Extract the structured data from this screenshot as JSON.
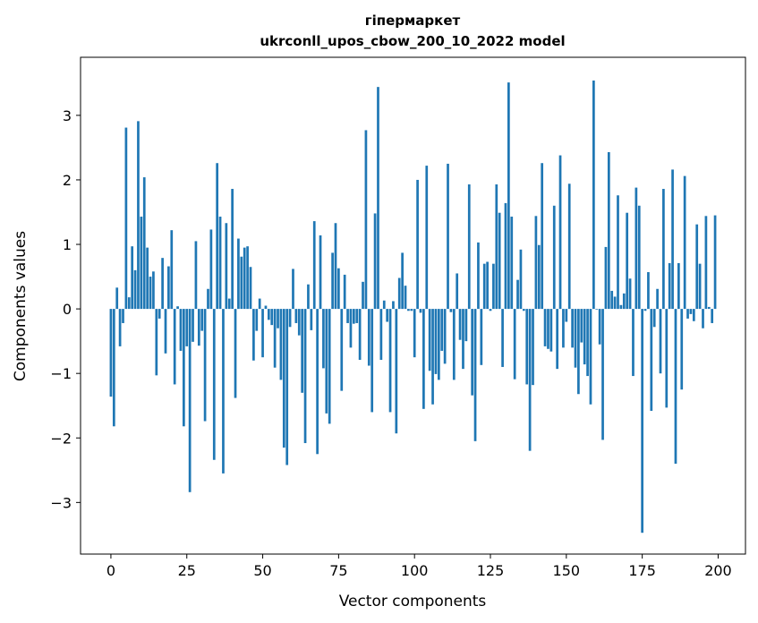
{
  "chart_data": {
    "type": "bar",
    "title": "гіпермаркет",
    "subtitle": "ukrconll_upos_cbow_200_10_2022 model",
    "xlabel": "Vector components",
    "ylabel": "Components values",
    "xlim": [
      -10,
      209
    ],
    "ylim": [
      -3.8,
      3.9
    ],
    "x_ticks": [
      0,
      25,
      50,
      75,
      100,
      125,
      150,
      175,
      200
    ],
    "y_ticks": [
      -3,
      -2,
      -1,
      0,
      1,
      2,
      3
    ],
    "x_tick_labels": [
      "0",
      "25",
      "50",
      "75",
      "100",
      "125",
      "150",
      "175",
      "200"
    ],
    "y_tick_labels": [
      "−3",
      "−2",
      "−1",
      "0",
      "1",
      "2",
      "3"
    ],
    "grid": false,
    "bar_color": "#1f77b4",
    "x": [
      0,
      1,
      2,
      3,
      4,
      5,
      6,
      7,
      8,
      9,
      10,
      11,
      12,
      13,
      14,
      15,
      16,
      17,
      18,
      19,
      20,
      21,
      22,
      23,
      24,
      25,
      26,
      27,
      28,
      29,
      30,
      31,
      32,
      33,
      34,
      35,
      36,
      37,
      38,
      39,
      40,
      41,
      42,
      43,
      44,
      45,
      46,
      47,
      48,
      49,
      50,
      51,
      52,
      53,
      54,
      55,
      56,
      57,
      58,
      59,
      60,
      61,
      62,
      63,
      64,
      65,
      66,
      67,
      68,
      69,
      70,
      71,
      72,
      73,
      74,
      75,
      76,
      77,
      78,
      79,
      80,
      81,
      82,
      83,
      84,
      85,
      86,
      87,
      88,
      89,
      90,
      91,
      92,
      93,
      94,
      95,
      96,
      97,
      98,
      99,
      100,
      101,
      102,
      103,
      104,
      105,
      106,
      107,
      108,
      109,
      110,
      111,
      112,
      113,
      114,
      115,
      116,
      117,
      118,
      119,
      120,
      121,
      122,
      123,
      124,
      125,
      126,
      127,
      128,
      129,
      130,
      131,
      132,
      133,
      134,
      135,
      136,
      137,
      138,
      139,
      140,
      141,
      142,
      143,
      144,
      145,
      146,
      147,
      148,
      149,
      150,
      151,
      152,
      153,
      154,
      155,
      156,
      157,
      158,
      159,
      160,
      161,
      162,
      163,
      164,
      165,
      166,
      167,
      168,
      169,
      170,
      171,
      172,
      173,
      174,
      175,
      176,
      177,
      178,
      179,
      180,
      181,
      182,
      183,
      184,
      185,
      186,
      187,
      188,
      189,
      190,
      191,
      192,
      193,
      194,
      195,
      196,
      197,
      198,
      199
    ],
    "values": [
      -1.36,
      -1.82,
      0.33,
      -0.58,
      -0.22,
      2.81,
      0.18,
      0.97,
      0.6,
      2.91,
      1.43,
      2.04,
      0.95,
      0.5,
      0.58,
      -1.03,
      -0.15,
      0.79,
      -0.69,
      0.66,
      1.22,
      -1.17,
      0.04,
      -0.65,
      -1.82,
      -0.58,
      -2.84,
      -0.51,
      1.05,
      -0.57,
      -0.34,
      -1.74,
      0.31,
      1.23,
      -2.34,
      2.26,
      1.43,
      -2.55,
      1.33,
      0.16,
      1.86,
      -1.38,
      1.09,
      0.81,
      0.95,
      0.97,
      0.65,
      -0.8,
      -0.34,
      0.16,
      -0.75,
      0.05,
      -0.17,
      -0.25,
      -0.91,
      -0.3,
      -1.1,
      -2.15,
      -2.42,
      -0.28,
      0.62,
      -0.22,
      -0.41,
      -1.3,
      -2.08,
      0.38,
      -0.33,
      1.36,
      -2.25,
      1.14,
      -0.92,
      -1.62,
      -1.78,
      0.87,
      1.33,
      0.63,
      -1.27,
      0.53,
      -0.22,
      -0.6,
      -0.23,
      -0.22,
      -0.79,
      0.42,
      2.77,
      -0.88,
      -1.6,
      1.48,
      3.44,
      -0.79,
      0.13,
      -0.2,
      -1.6,
      0.12,
      -1.93,
      0.48,
      0.87,
      0.36,
      -0.03,
      -0.03,
      -0.75,
      2.0,
      -0.06,
      -1.55,
      2.22,
      -0.96,
      -1.48,
      -1.01,
      -1.1,
      -0.65,
      -0.85,
      2.25,
      -0.05,
      -1.1,
      0.55,
      -0.48,
      -0.93,
      -0.5,
      1.93,
      -1.34,
      -2.05,
      1.03,
      -0.87,
      0.7,
      0.73,
      -0.03,
      0.7,
      1.93,
      1.49,
      -0.9,
      1.64,
      3.51,
      1.43,
      -1.09,
      0.45,
      0.92,
      -0.03,
      -1.17,
      -2.2,
      -1.18,
      1.44,
      0.99,
      2.26,
      -0.58,
      -0.62,
      -0.66,
      1.6,
      -0.93,
      2.38,
      -0.6,
      -0.2,
      1.94,
      -0.6,
      -0.91,
      -1.32,
      -0.52,
      -0.86,
      -1.04,
      -1.48,
      3.54,
      -0.01,
      -0.55,
      -2.03,
      0.96,
      2.43,
      0.28,
      0.19,
      1.76,
      0.06,
      0.24,
      1.49,
      0.47,
      -1.04,
      1.88,
      1.6,
      -3.47,
      -0.03,
      0.57,
      -1.58,
      -0.28,
      0.31,
      -1.0,
      1.86,
      -1.53,
      0.71,
      2.16,
      -2.4,
      0.71,
      -1.25,
      2.06,
      -0.15,
      -0.08,
      -0.19,
      1.31,
      0.7,
      -0.3,
      1.44,
      0.03,
      -0.22,
      1.45
    ]
  }
}
